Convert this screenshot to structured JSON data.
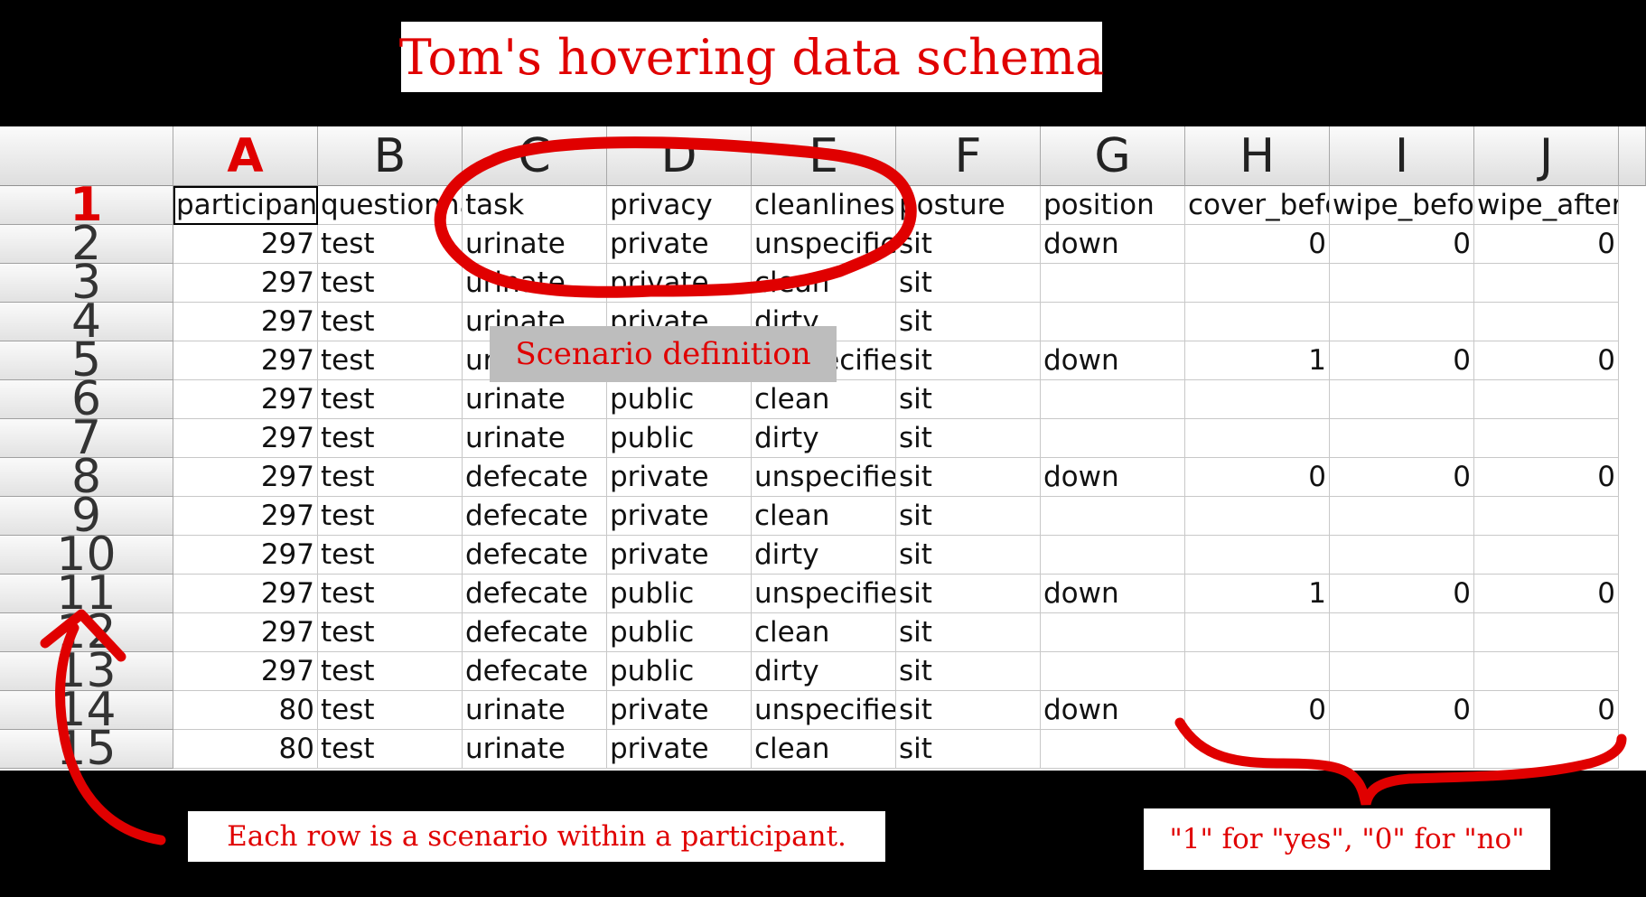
{
  "title": "Tom's hovering data schema",
  "columns": [
    "A",
    "B",
    "C",
    "D",
    "E",
    "F",
    "G",
    "H",
    "I",
    "J"
  ],
  "selected_column": "A",
  "selected_row": "1",
  "headers": [
    "participant",
    "questionnaire",
    "task",
    "privacy",
    "cleanliness",
    "posture",
    "position",
    "cover_before",
    "wipe_before",
    "wipe_after"
  ],
  "rows": [
    {
      "n": "2",
      "v": [
        "297",
        "test",
        "urinate",
        "private",
        "unspecified",
        "sit",
        "down",
        "0",
        "0",
        "0"
      ]
    },
    {
      "n": "3",
      "v": [
        "297",
        "test",
        "urinate",
        "private",
        "clean",
        "sit",
        "",
        "",
        "",
        ""
      ]
    },
    {
      "n": "4",
      "v": [
        "297",
        "test",
        "urinate",
        "private",
        "dirty",
        "sit",
        "",
        "",
        "",
        ""
      ]
    },
    {
      "n": "5",
      "v": [
        "297",
        "test",
        "urinate",
        "private",
        "unspecified",
        "sit",
        "down",
        "1",
        "0",
        "0"
      ]
    },
    {
      "n": "6",
      "v": [
        "297",
        "test",
        "urinate",
        "public",
        "clean",
        "sit",
        "",
        "",
        "",
        ""
      ]
    },
    {
      "n": "7",
      "v": [
        "297",
        "test",
        "urinate",
        "public",
        "dirty",
        "sit",
        "",
        "",
        "",
        ""
      ]
    },
    {
      "n": "8",
      "v": [
        "297",
        "test",
        "defecate",
        "private",
        "unspecified",
        "sit",
        "down",
        "0",
        "0",
        "0"
      ]
    },
    {
      "n": "9",
      "v": [
        "297",
        "test",
        "defecate",
        "private",
        "clean",
        "sit",
        "",
        "",
        "",
        ""
      ]
    },
    {
      "n": "10",
      "v": [
        "297",
        "test",
        "defecate",
        "private",
        "dirty",
        "sit",
        "",
        "",
        "",
        ""
      ]
    },
    {
      "n": "11",
      "v": [
        "297",
        "test",
        "defecate",
        "public",
        "unspecified",
        "sit",
        "down",
        "1",
        "0",
        "0"
      ]
    },
    {
      "n": "12",
      "v": [
        "297",
        "test",
        "defecate",
        "public",
        "clean",
        "sit",
        "",
        "",
        "",
        ""
      ]
    },
    {
      "n": "13",
      "v": [
        "297",
        "test",
        "defecate",
        "public",
        "dirty",
        "sit",
        "",
        "",
        "",
        ""
      ]
    },
    {
      "n": "14",
      "v": [
        "80",
        "test",
        "urinate",
        "private",
        "unspecified",
        "sit",
        "down",
        "0",
        "0",
        "0"
      ]
    },
    {
      "n": "15",
      "v": [
        "80",
        "test",
        "urinate",
        "private",
        "clean",
        "sit",
        "",
        "",
        "",
        ""
      ]
    }
  ],
  "annotations": {
    "scenario": "Scenario definition",
    "rows_note": "Each row is a scenario within a participant.",
    "binary_note": "\"1\" for \"yes\", \"0\" for \"no\""
  },
  "colors": {
    "accent": "#e00000",
    "background": "#000000"
  }
}
